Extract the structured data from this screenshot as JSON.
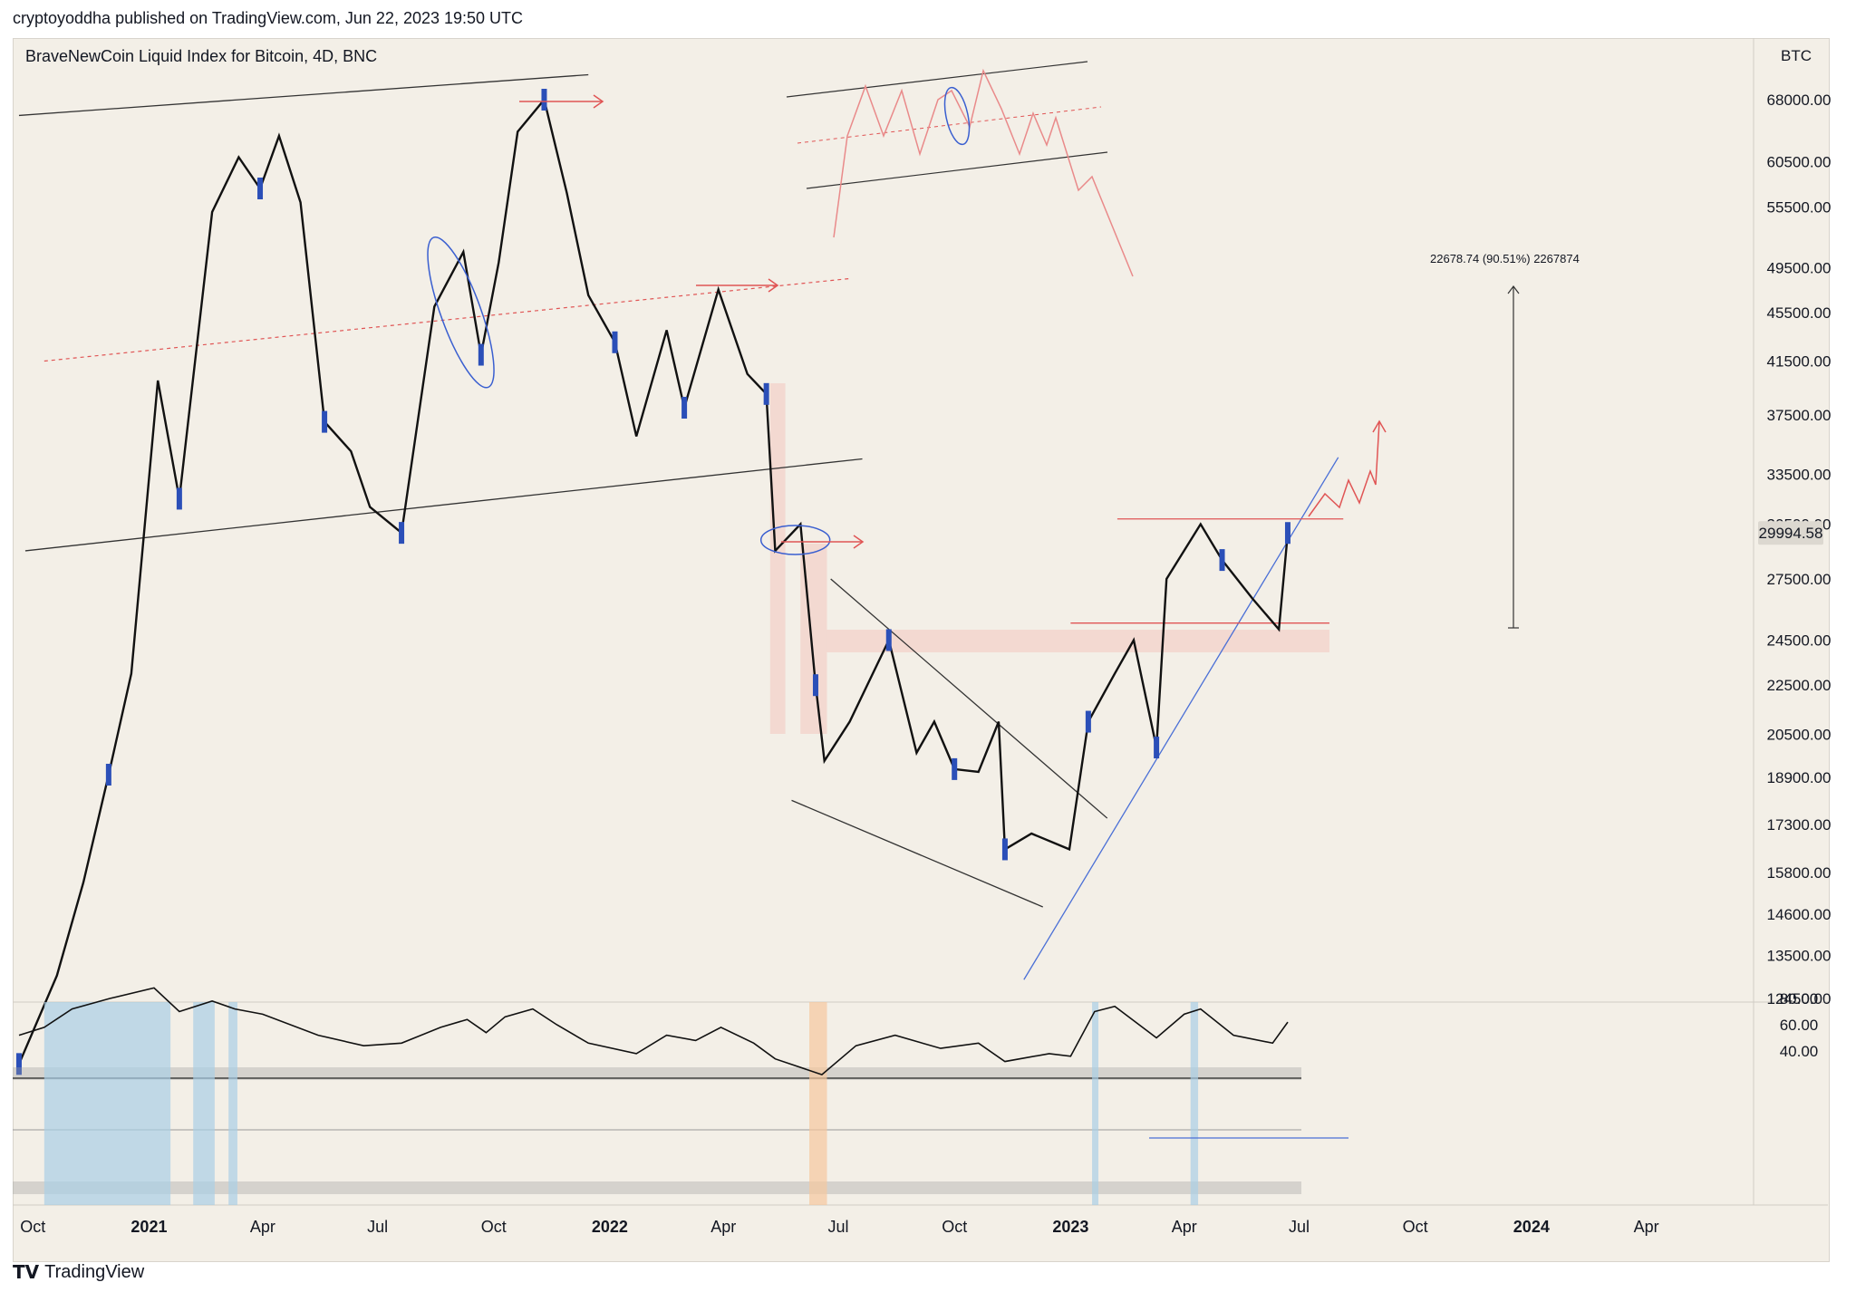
{
  "published_by": "cryptoyoddha published on TradingView.com, Jun 22, 2023 19:50 UTC",
  "footer_brand": "TradingView",
  "chart_data": {
    "type": "candlestick",
    "title": "BraveNewCoin Liquid Index for Bitcoin, 4D, BNC",
    "currency": "BTC",
    "last_price": "29994.58",
    "measure_label": "22678.74 (90.51%) 2267874",
    "y_ticks": [
      "68000.00",
      "60500.00",
      "55500.00",
      "49500.00",
      "45500.00",
      "41500.00",
      "37500.00",
      "33500.00",
      "30500.00",
      "27500.00",
      "24500.00",
      "22500.00",
      "20500.00",
      "18900.00",
      "17300.00",
      "15800.00",
      "14600.00",
      "13500.00",
      "12450.00"
    ],
    "rsi_ticks": [
      "80.00",
      "60.00",
      "40.00"
    ],
    "x_ticks": [
      "Oct",
      "2021",
      "Apr",
      "Jul",
      "Oct",
      "2022",
      "Apr",
      "Jul",
      "Oct",
      "2023",
      "Apr",
      "Jul",
      "Oct",
      "2024",
      "Apr"
    ],
    "x_ticks_bold": [
      false,
      true,
      false,
      false,
      false,
      true,
      false,
      false,
      false,
      true,
      false,
      false,
      false,
      true,
      false
    ],
    "price_path": [
      [
        "2020-09-20",
        11000
      ],
      [
        "2020-10-20",
        13000
      ],
      [
        "2020-11-10",
        15500
      ],
      [
        "2020-11-30",
        19000
      ],
      [
        "2020-12-18",
        23000
      ],
      [
        "2021-01-08",
        40000
      ],
      [
        "2021-01-25",
        32000
      ],
      [
        "2021-02-20",
        55000
      ],
      [
        "2021-03-13",
        61000
      ],
      [
        "2021-03-30",
        57500
      ],
      [
        "2021-04-14",
        63500
      ],
      [
        "2021-05-01",
        56000
      ],
      [
        "2021-05-20",
        37000
      ],
      [
        "2021-06-10",
        35000
      ],
      [
        "2021-06-25",
        31500
      ],
      [
        "2021-07-20",
        30000
      ],
      [
        "2021-08-15",
        46000
      ],
      [
        "2021-09-07",
        51000
      ],
      [
        "2021-09-21",
        42000
      ],
      [
        "2021-10-05",
        50000
      ],
      [
        "2021-10-20",
        64000
      ],
      [
        "2021-11-10",
        68000
      ],
      [
        "2021-11-28",
        57000
      ],
      [
        "2021-12-15",
        47000
      ],
      [
        "2022-01-05",
        43000
      ],
      [
        "2022-01-22",
        36000
      ],
      [
        "2022-02-15",
        44000
      ],
      [
        "2022-03-01",
        38000
      ],
      [
        "2022-03-28",
        47500
      ],
      [
        "2022-04-20",
        40500
      ],
      [
        "2022-05-05",
        39000
      ],
      [
        "2022-05-12",
        29000
      ],
      [
        "2022-06-01",
        30500
      ],
      [
        "2022-06-13",
        22500
      ],
      [
        "2022-06-20",
        19500
      ],
      [
        "2022-07-10",
        21000
      ],
      [
        "2022-08-10",
        24500
      ],
      [
        "2022-09-01",
        19800
      ],
      [
        "2022-09-15",
        21000
      ],
      [
        "2022-10-01",
        19200
      ],
      [
        "2022-10-20",
        19100
      ],
      [
        "2022-11-05",
        21000
      ],
      [
        "2022-11-10",
        16500
      ],
      [
        "2022-12-01",
        17000
      ],
      [
        "2022-12-31",
        16500
      ],
      [
        "2023-01-15",
        21000
      ],
      [
        "2023-02-05",
        23000
      ],
      [
        "2023-02-20",
        24500
      ],
      [
        "2023-03-10",
        20000
      ],
      [
        "2023-03-18",
        27500
      ],
      [
        "2023-04-14",
        30500
      ],
      [
        "2023-05-01",
        28500
      ],
      [
        "2023-05-25",
        26500
      ],
      [
        "2023-06-15",
        25000
      ],
      [
        "2023-06-22",
        29994.58
      ]
    ],
    "rsi_path": [
      [
        "2020-09-20",
        52
      ],
      [
        "2020-10-10",
        58
      ],
      [
        "2020-11-01",
        72
      ],
      [
        "2020-12-01",
        80
      ],
      [
        "2021-01-05",
        88
      ],
      [
        "2021-01-25",
        70
      ],
      [
        "2021-02-20",
        78
      ],
      [
        "2021-03-10",
        72
      ],
      [
        "2021-04-01",
        68
      ],
      [
        "2021-05-15",
        52
      ],
      [
        "2021-06-20",
        44
      ],
      [
        "2021-07-20",
        46
      ],
      [
        "2021-08-20",
        58
      ],
      [
        "2021-09-10",
        64
      ],
      [
        "2021-09-25",
        54
      ],
      [
        "2021-10-10",
        66
      ],
      [
        "2021-11-01",
        72
      ],
      [
        "2021-11-20",
        60
      ],
      [
        "2021-12-15",
        46
      ],
      [
        "2022-01-22",
        38
      ],
      [
        "2022-02-15",
        52
      ],
      [
        "2022-03-10",
        48
      ],
      [
        "2022-03-30",
        58
      ],
      [
        "2022-04-25",
        46
      ],
      [
        "2022-05-12",
        34
      ],
      [
        "2022-06-18",
        22
      ],
      [
        "2022-07-15",
        44
      ],
      [
        "2022-08-15",
        52
      ],
      [
        "2022-09-20",
        42
      ],
      [
        "2022-10-20",
        46
      ],
      [
        "2022-11-10",
        32
      ],
      [
        "2022-12-15",
        38
      ],
      [
        "2023-01-01",
        36
      ],
      [
        "2023-01-20",
        70
      ],
      [
        "2023-02-05",
        74
      ],
      [
        "2023-03-10",
        50
      ],
      [
        "2023-04-01",
        68
      ],
      [
        "2023-04-14",
        72
      ],
      [
        "2023-05-10",
        52
      ],
      [
        "2023-06-10",
        46
      ],
      [
        "2023-06-22",
        62
      ]
    ]
  }
}
